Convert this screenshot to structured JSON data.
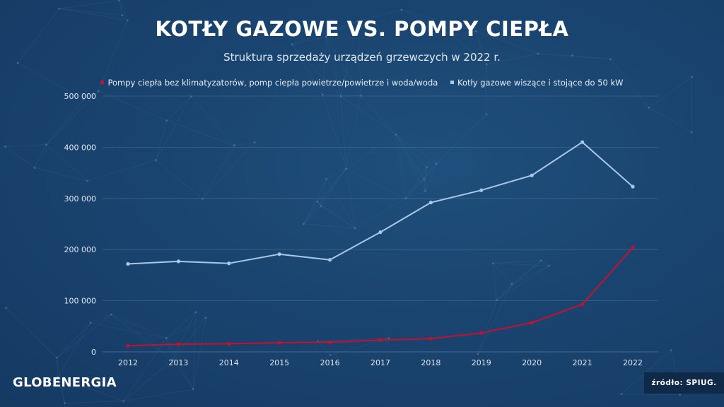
{
  "title": "KOTŁY GAZOWE VS. POMPY CIEPŁA",
  "subtitle": "Struktura sprzedaży urządzeń grzewczych w 2022 r.",
  "logo": "GLOBENERGIA",
  "source": "źródło: SPIUG.",
  "colors": {
    "heat_pumps": "#c8102e",
    "gas_boilers": "#a9c8e8",
    "gridline": "#4a6f94",
    "axis_text": "#e0e8f0"
  },
  "chart_data": {
    "type": "line",
    "x": [
      "2012",
      "2013",
      "2014",
      "2015",
      "2016",
      "2017",
      "2018",
      "2019",
      "2020",
      "2021",
      "2022"
    ],
    "ylim": [
      0,
      500000
    ],
    "yticks": [
      0,
      100000,
      200000,
      300000,
      400000,
      500000
    ],
    "ytick_labels": [
      "0",
      "100 000",
      "200 000",
      "300 000",
      "400 000",
      "500 000"
    ],
    "grid": true,
    "legend_position": "top",
    "series": [
      {
        "name": "Pompy ciepła bez klimatyzatorów, pomp ciepła powietrze/powietrze i woda/woda",
        "color_key": "heat_pumps",
        "values": [
          12000,
          15000,
          16000,
          18000,
          19000,
          23000,
          26000,
          37000,
          57000,
          93000,
          204000
        ]
      },
      {
        "name": "Kotły gazowe wiszące i stojące do 50 kW",
        "color_key": "gas_boilers",
        "values": [
          172000,
          177000,
          173000,
          191000,
          180000,
          234000,
          292000,
          316000,
          345000,
          410000,
          323000
        ]
      }
    ]
  }
}
